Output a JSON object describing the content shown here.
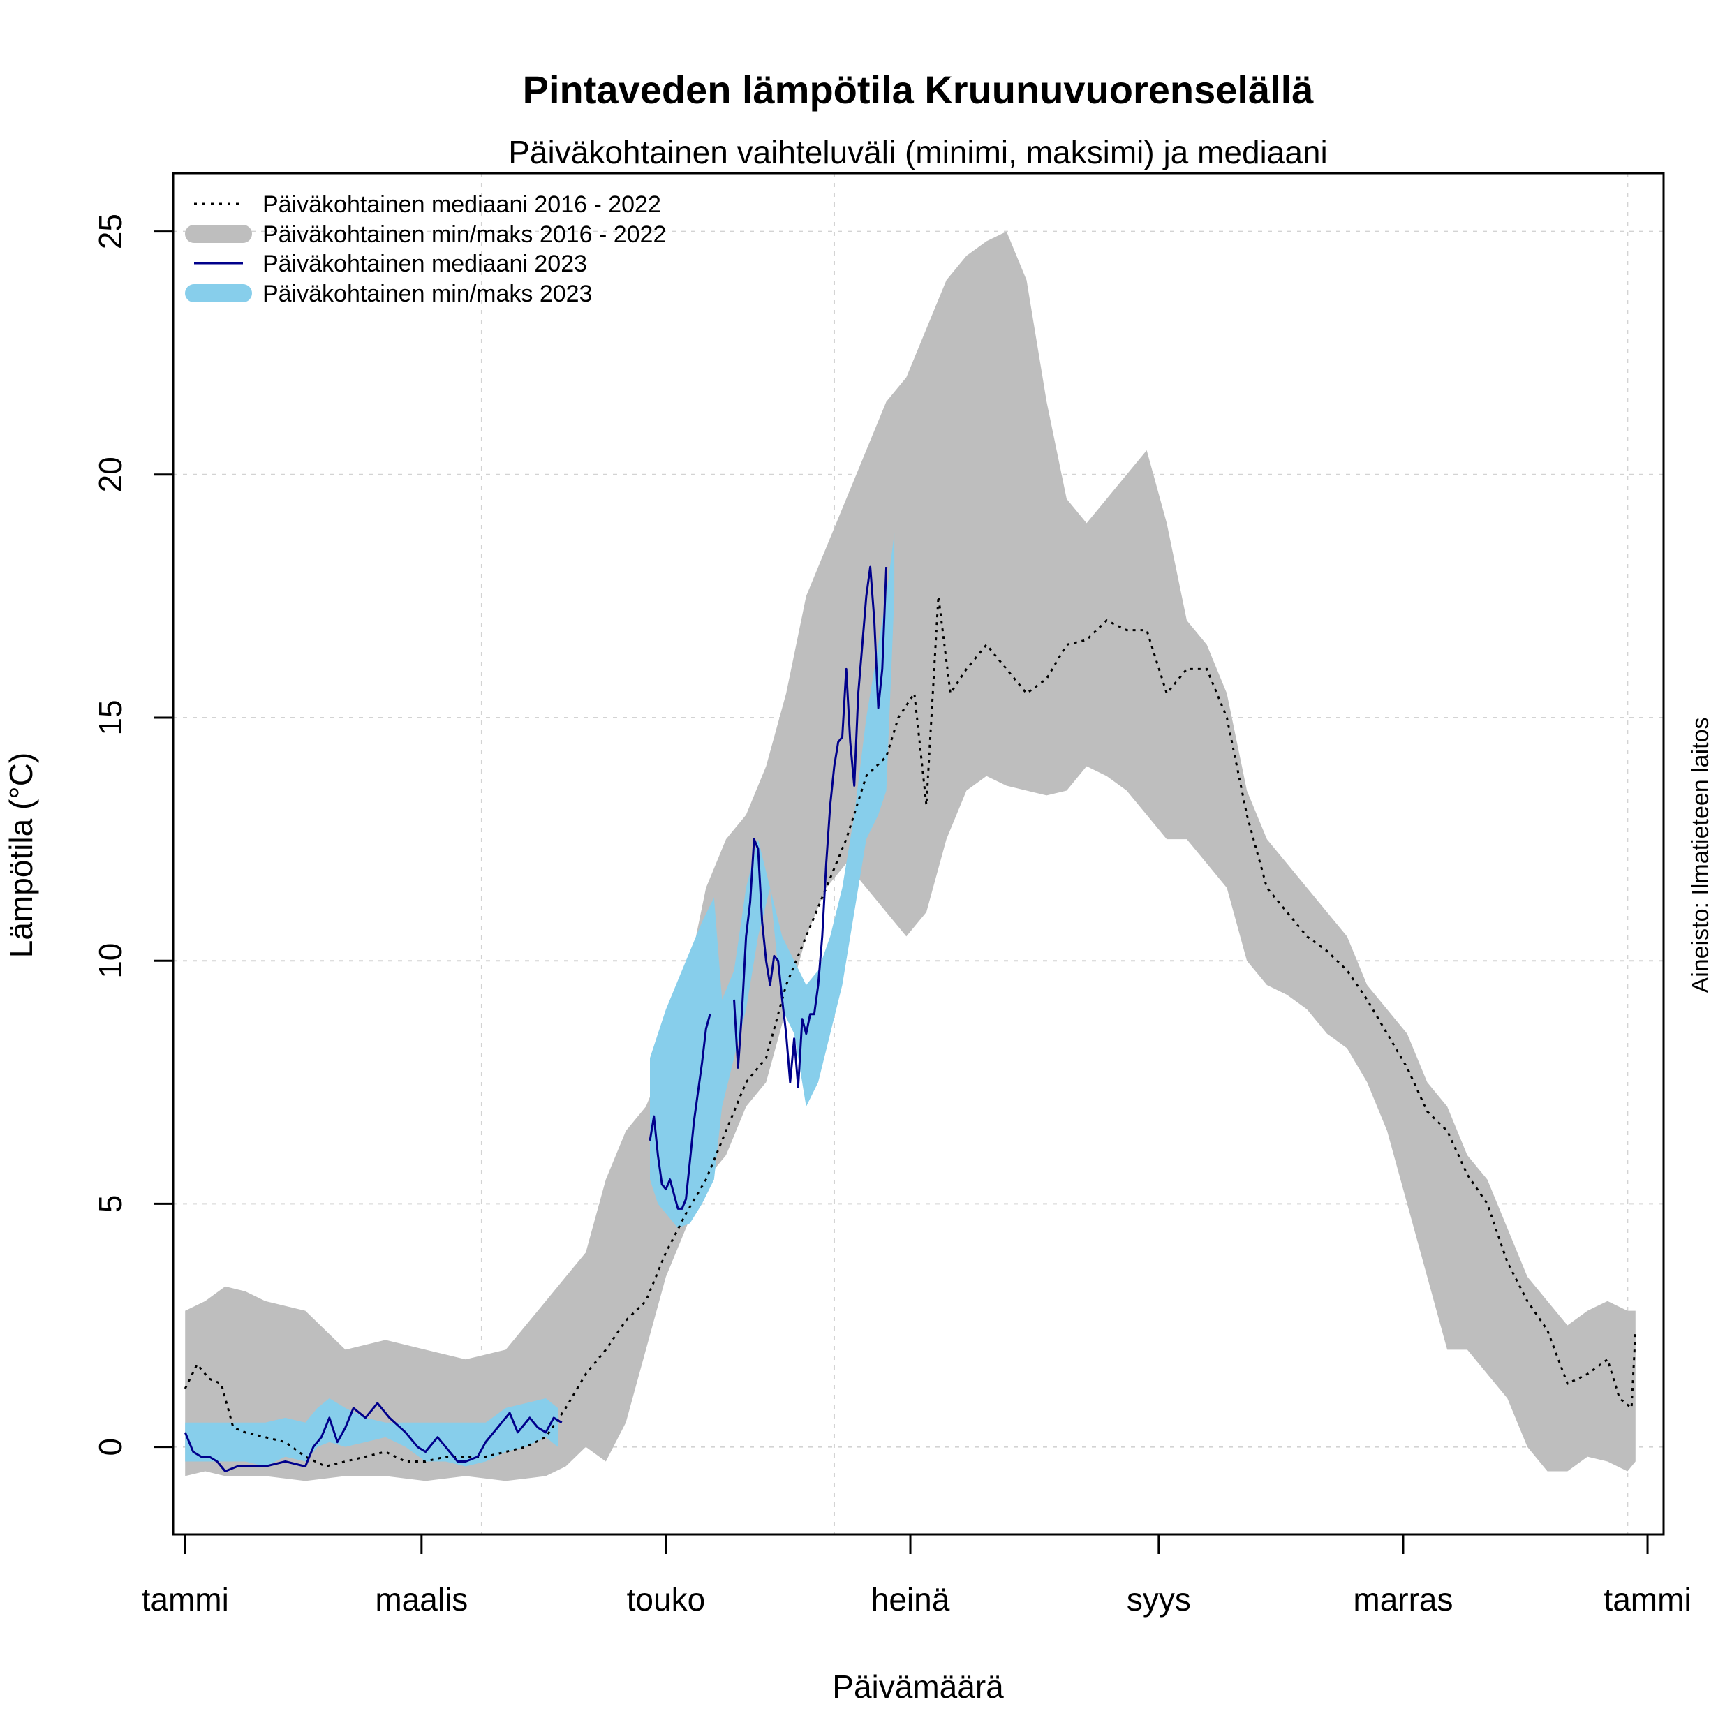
{
  "chart_data": {
    "type": "line",
    "title": "Pintaveden lämpötila Kruunuvuorenselällä",
    "subtitle": "Päiväkohtainen vaihteluväli (minimi, maksimi) ja mediaani",
    "xlabel": "Päivämäärä",
    "ylabel": "Lämpötila (°C)",
    "source": "Aineisto: Ilmatieteen laitos",
    "xlim": [
      -3,
      369
    ],
    "ylim": [
      -1.8,
      26.2
    ],
    "grid": true,
    "legend_position": "top-left",
    "x_ticks": [
      {
        "label": "tammi",
        "day": 0
      },
      {
        "label": "maalis",
        "day": 59
      },
      {
        "label": "touko",
        "day": 120
      },
      {
        "label": "heinä",
        "day": 181
      },
      {
        "label": "syys",
        "day": 243
      },
      {
        "label": "marras",
        "day": 304
      },
      {
        "label": "tammi",
        "day": 365
      }
    ],
    "y_ticks": [
      0,
      5,
      10,
      15,
      20,
      25
    ],
    "colors": {
      "median_2016_2022": "#000000",
      "range_2016_2022": "#bebebe",
      "median_2023": "#00008b",
      "range_2023": "#87ceeb",
      "grid": "#d3d3d3"
    },
    "legend": [
      {
        "label": "Päiväkohtainen mediaani 2016 - 2022",
        "style": "dotted-line",
        "series": "median_2016_2022"
      },
      {
        "label": "Päiväkohtainen min/maks 2016 - 2022",
        "style": "thick-band",
        "series": "range_2016_2022"
      },
      {
        "label": "Päiväkohtainen mediaani 2023",
        "style": "solid-line",
        "series": "median_2023"
      },
      {
        "label": "Päiväkohtainen min/maks 2023",
        "style": "thick-band",
        "series": "range_2023"
      }
    ],
    "series": [
      {
        "name": "Päiväkohtainen min/maks 2016 - 2022",
        "type": "range",
        "x": [
          0,
          5,
          10,
          15,
          20,
          30,
          40,
          50,
          60,
          70,
          80,
          90,
          95,
          100,
          105,
          110,
          115,
          120,
          125,
          130,
          135,
          140,
          145,
          150,
          155,
          160,
          165,
          170,
          175,
          180,
          185,
          190,
          195,
          200,
          205,
          210,
          215,
          220,
          225,
          230,
          235,
          240,
          245,
          250,
          255,
          260,
          265,
          270,
          275,
          280,
          285,
          290,
          295,
          300,
          305,
          310,
          315,
          320,
          325,
          330,
          335,
          340,
          345,
          350,
          355,
          360,
          362
        ],
        "min": [
          -0.6,
          -0.5,
          -0.6,
          -0.6,
          -0.6,
          -0.7,
          -0.6,
          -0.6,
          -0.7,
          -0.6,
          -0.7,
          -0.6,
          -0.4,
          0.0,
          -0.3,
          0.5,
          2.0,
          3.5,
          4.5,
          5.5,
          6.0,
          7.0,
          7.5,
          9.0,
          10.5,
          11.5,
          12.0,
          11.5,
          11.0,
          10.5,
          11.0,
          12.5,
          13.5,
          13.8,
          13.6,
          13.5,
          13.4,
          13.5,
          14.0,
          13.8,
          13.5,
          13.0,
          12.5,
          12.5,
          12.0,
          11.5,
          10.0,
          9.5,
          9.3,
          9.0,
          8.5,
          8.2,
          7.5,
          6.5,
          5.0,
          3.5,
          2.0,
          2.0,
          1.5,
          1.0,
          0.0,
          -0.5,
          -0.5,
          -0.2,
          -0.3,
          -0.5,
          -0.3
        ],
        "max": [
          2.8,
          3.0,
          3.3,
          3.2,
          3.0,
          2.8,
          2.0,
          2.2,
          2.0,
          1.8,
          2.0,
          3.0,
          3.5,
          4.0,
          5.5,
          6.5,
          7.0,
          8.0,
          9.5,
          11.5,
          12.5,
          13.0,
          14.0,
          15.5,
          17.5,
          18.5,
          19.5,
          20.5,
          21.5,
          22.0,
          23.0,
          24.0,
          24.5,
          24.8,
          25.0,
          24.0,
          21.5,
          19.5,
          19.0,
          19.5,
          20.0,
          20.5,
          19.0,
          17.0,
          16.5,
          15.5,
          13.5,
          12.5,
          12.0,
          11.5,
          11.0,
          10.5,
          9.5,
          9.0,
          8.5,
          7.5,
          7.0,
          6.0,
          5.5,
          4.5,
          3.5,
          3.0,
          2.5,
          2.8,
          3.0,
          2.8,
          2.8
        ]
      },
      {
        "name": "Päiväkohtainen mediaani 2016 - 2022",
        "type": "line",
        "x": [
          0,
          3,
          6,
          9,
          12,
          15,
          20,
          25,
          30,
          35,
          40,
          45,
          50,
          55,
          60,
          65,
          70,
          75,
          80,
          85,
          90,
          95,
          100,
          105,
          110,
          115,
          120,
          125,
          130,
          135,
          140,
          145,
          150,
          155,
          160,
          165,
          170,
          175,
          178,
          182,
          185,
          188,
          191,
          195,
          200,
          205,
          210,
          215,
          220,
          225,
          230,
          235,
          240,
          245,
          250,
          255,
          260,
          265,
          270,
          275,
          280,
          285,
          290,
          295,
          300,
          305,
          310,
          315,
          320,
          325,
          330,
          335,
          340,
          345,
          350,
          355,
          358,
          361,
          362
        ],
        "y": [
          1.2,
          1.7,
          1.4,
          1.3,
          0.4,
          0.3,
          0.2,
          0.1,
          -0.2,
          -0.4,
          -0.3,
          -0.2,
          -0.1,
          -0.3,
          -0.3,
          -0.2,
          -0.2,
          -0.2,
          -0.1,
          0.0,
          0.2,
          0.8,
          1.5,
          2.0,
          2.6,
          3.0,
          4.0,
          4.8,
          5.5,
          6.5,
          7.5,
          8.0,
          9.5,
          10.5,
          11.5,
          12.5,
          13.8,
          14.2,
          15.0,
          15.5,
          13.2,
          17.5,
          15.5,
          16.0,
          16.5,
          16.0,
          15.5,
          15.8,
          16.5,
          16.6,
          17.0,
          16.8,
          16.8,
          15.5,
          16.0,
          16.0,
          15.0,
          13.0,
          11.5,
          11.0,
          10.5,
          10.2,
          9.8,
          9.2,
          8.5,
          7.8,
          6.9,
          6.5,
          5.6,
          5.0,
          3.8,
          3.0,
          2.4,
          1.3,
          1.5,
          1.8,
          1.0,
          0.8,
          2.4
        ]
      },
      {
        "name": "Päiväkohtainen min/maks 2023",
        "type": "range",
        "segments": [
          {
            "x": [
              0,
              5,
              10,
              15,
              20,
              25,
              30,
              33,
              36,
              40,
              45,
              50,
              55,
              60,
              65,
              70,
              75,
              80,
              85,
              90,
              93
            ],
            "min": [
              -0.3,
              -0.3,
              -0.3,
              -0.3,
              -0.4,
              -0.2,
              -0.3,
              0.0,
              0.1,
              0.0,
              0.1,
              0.2,
              0.0,
              -0.3,
              -0.3,
              -0.4,
              -0.3,
              -0.1,
              0.0,
              0.2,
              0.0
            ],
            "max": [
              0.5,
              0.5,
              0.5,
              0.5,
              0.5,
              0.6,
              0.5,
              0.8,
              1.0,
              0.8,
              0.6,
              0.5,
              0.5,
              0.5,
              0.5,
              0.5,
              0.5,
              0.8,
              0.9,
              1.0,
              0.8
            ]
          },
          {
            "x": [
              116,
              118,
              120,
              123,
              126,
              129,
              132,
              134,
              137,
              140,
              143,
              146,
              149,
              152,
              155,
              158,
              161,
              164,
              167,
              170,
              173,
              175,
              177
            ],
            "min": [
              5.5,
              5.0,
              4.8,
              4.5,
              4.6,
              5.0,
              5.5,
              7.0,
              8.0,
              9.0,
              10.5,
              11.5,
              9.0,
              8.5,
              7.0,
              7.5,
              8.5,
              9.5,
              11.0,
              12.5,
              13.0,
              13.5,
              17.5
            ],
            "max": [
              8.0,
              8.5,
              9.0,
              9.6,
              10.2,
              10.8,
              11.3,
              9.2,
              9.8,
              11.5,
              12.5,
              11.5,
              10.5,
              10.0,
              9.5,
              9.8,
              10.5,
              11.5,
              13.0,
              15.0,
              16.5,
              17.5,
              18.8
            ]
          }
        ]
      },
      {
        "name": "Päiväkohtainen mediaani 2023",
        "type": "line",
        "segments": [
          {
            "x": [
              0,
              2,
              4,
              6,
              8,
              10,
              13,
              16,
              20,
              25,
              30,
              32,
              34,
              36,
              38,
              40,
              42,
              45,
              48,
              51,
              55,
              58,
              60,
              63,
              65,
              68,
              70,
              73,
              75,
              78,
              81,
              83,
              86,
              88,
              90,
              92,
              94
            ],
            "y": [
              0.3,
              -0.1,
              -0.2,
              -0.2,
              -0.3,
              -0.5,
              -0.4,
              -0.4,
              -0.4,
              -0.3,
              -0.4,
              0.0,
              0.2,
              0.6,
              0.1,
              0.4,
              0.8,
              0.6,
              0.9,
              0.6,
              0.3,
              0.0,
              -0.1,
              0.2,
              0.0,
              -0.3,
              -0.3,
              -0.2,
              0.1,
              0.4,
              0.7,
              0.3,
              0.6,
              0.4,
              0.3,
              0.6,
              0.5
            ]
          },
          {
            "x": [
              116,
              117,
              118,
              119,
              120,
              121,
              122,
              123,
              124,
              125,
              126,
              127,
              128,
              129,
              130,
              131
            ],
            "y": [
              6.3,
              6.8,
              6.0,
              5.4,
              5.3,
              5.5,
              5.2,
              4.9,
              4.9,
              5.1,
              5.9,
              6.7,
              7.3,
              7.9,
              8.6,
              8.9
            ]
          },
          {
            "x": [
              137,
              138,
              139,
              140,
              141,
              142,
              143,
              144,
              145,
              146,
              147,
              148,
              149,
              150,
              151,
              152,
              153,
              154,
              155,
              156,
              157,
              158,
              159,
              160,
              161,
              162,
              163,
              164,
              165,
              166,
              167,
              168,
              169,
              170,
              171,
              172,
              173,
              174,
              175
            ],
            "y": [
              9.2,
              7.8,
              9.0,
              10.5,
              11.2,
              12.5,
              12.3,
              10.8,
              10.0,
              9.5,
              10.1,
              10.0,
              9.2,
              8.5,
              7.5,
              8.4,
              7.4,
              8.8,
              8.5,
              8.9,
              8.9,
              9.5,
              10.5,
              12.0,
              13.2,
              14.0,
              14.5,
              14.6,
              16.0,
              14.5,
              13.6,
              15.5,
              16.5,
              17.5,
              18.1,
              17.0,
              15.2,
              16.0,
              18.1
            ]
          }
        ]
      }
    ]
  }
}
